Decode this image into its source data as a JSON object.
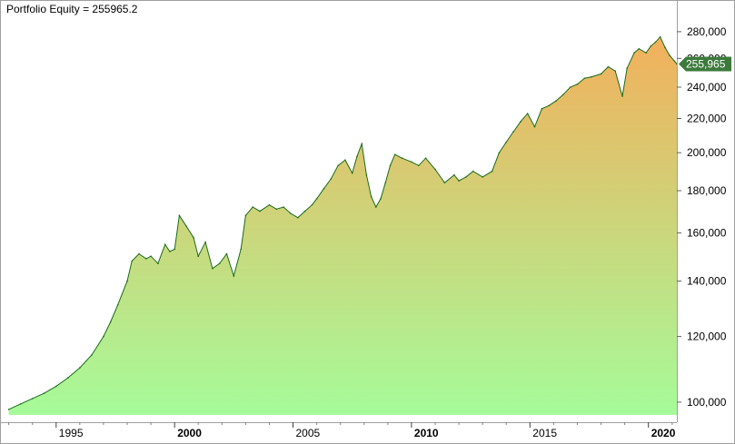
{
  "title": {
    "label": "Portfolio Equity",
    "value": "255965.2"
  },
  "colors": {
    "line": "#1a6b1a",
    "area_top": "#f2b05c",
    "area_bottom": "#a6fb9a",
    "last_value_tag": "#3c7a3c"
  },
  "chart_data": {
    "type": "area",
    "series": [
      {
        "name": "Portfolio Equity",
        "x": [
          1993.0,
          1993.5,
          1994.0,
          1994.5,
          1995.0,
          1995.5,
          1996.0,
          1996.5,
          1997.0,
          1997.3,
          1997.6,
          1998.0,
          1998.2,
          1998.5,
          1998.8,
          1999.0,
          1999.3,
          1999.6,
          1999.8,
          2000.0,
          2000.2,
          2000.5,
          2000.8,
          2001.0,
          2001.3,
          2001.6,
          2001.9,
          2002.2,
          2002.5,
          2002.8,
          2003.0,
          2003.3,
          2003.6,
          2004.0,
          2004.3,
          2004.6,
          2004.9,
          2005.2,
          2005.5,
          2005.8,
          2006.0,
          2006.3,
          2006.6,
          2006.9,
          2007.2,
          2007.5,
          2007.7,
          2007.9,
          2008.1,
          2008.3,
          2008.5,
          2008.7,
          2008.9,
          2009.1,
          2009.3,
          2009.6,
          2010.0,
          2010.3,
          2010.6,
          2011.0,
          2011.4,
          2011.8,
          2012.0,
          2012.3,
          2012.6,
          2013.0,
          2013.4,
          2013.7,
          2014.0,
          2014.3,
          2014.6,
          2014.9,
          2015.2,
          2015.5,
          2015.8,
          2016.1,
          2016.4,
          2016.7,
          2017.0,
          2017.3,
          2017.6,
          2018.0,
          2018.3,
          2018.6,
          2018.9,
          2019.1,
          2019.4,
          2019.6,
          2019.9,
          2020.1,
          2020.3,
          2020.5,
          2020.7,
          2020.9,
          2021.1,
          2021.2
        ],
        "values": [
          98000,
          99500,
          101000,
          102500,
          104500,
          107000,
          110000,
          114000,
          120000,
          125000,
          131000,
          140000,
          148000,
          151000,
          149000,
          150000,
          147000,
          155000,
          152000,
          153000,
          168000,
          163000,
          158000,
          150000,
          156000,
          145000,
          147000,
          151000,
          142000,
          153000,
          168000,
          172000,
          170000,
          173000,
          171000,
          172000,
          169000,
          167000,
          170000,
          173000,
          176000,
          181000,
          186000,
          193000,
          196000,
          189000,
          198000,
          205000,
          188000,
          177000,
          172000,
          176000,
          184000,
          193000,
          199000,
          197000,
          195000,
          193000,
          197000,
          191000,
          184000,
          188000,
          185000,
          187000,
          190000,
          187000,
          190000,
          200000,
          206000,
          212000,
          218000,
          223000,
          215000,
          226000,
          228000,
          231000,
          235000,
          240000,
          242000,
          246000,
          247000,
          249000,
          254000,
          251000,
          234000,
          253000,
          264000,
          267000,
          264000,
          269000,
          272000,
          276000,
          268000,
          262000,
          258000,
          255965
        ]
      }
    ],
    "x_ticks": [
      {
        "value": 1995,
        "label": "1995",
        "major": false
      },
      {
        "value": 2000,
        "label": "2000",
        "major": true
      },
      {
        "value": 2005,
        "label": "2005",
        "major": false
      },
      {
        "value": 2010,
        "label": "2010",
        "major": true
      },
      {
        "value": 2015,
        "label": "2015",
        "major": false
      },
      {
        "value": 2020,
        "label": "2020",
        "major": true
      }
    ],
    "y_ticks": [
      {
        "value": 100000,
        "label": "100,000"
      },
      {
        "value": 120000,
        "label": "120,000"
      },
      {
        "value": 140000,
        "label": "140,000"
      },
      {
        "value": 160000,
        "label": "160,000"
      },
      {
        "value": 180000,
        "label": "180,000"
      },
      {
        "value": 200000,
        "label": "200,000"
      },
      {
        "value": 220000,
        "label": "220,000"
      },
      {
        "value": 240000,
        "label": "240,000"
      },
      {
        "value": 260000,
        "label": "260,000"
      },
      {
        "value": 280000,
        "label": "280,000"
      }
    ],
    "last_value_label": "255,965",
    "xlim": [
      1992.9,
      2021.2
    ],
    "ylim": [
      96500,
      290000
    ],
    "y_scale": "log",
    "grid": false,
    "xlabel": "",
    "ylabel": ""
  }
}
